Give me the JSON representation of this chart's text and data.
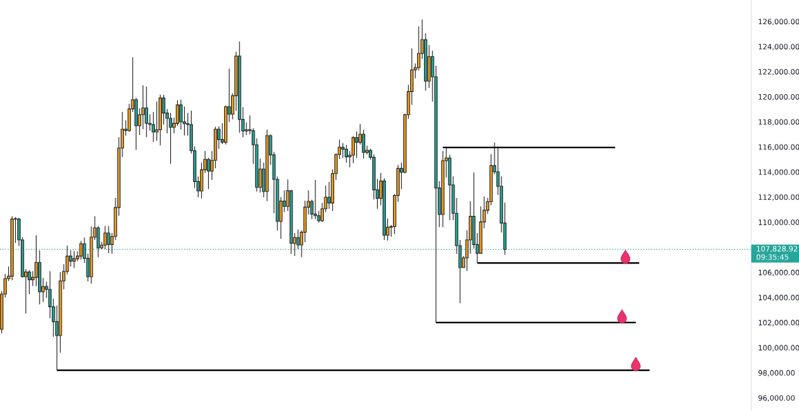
{
  "chart_data": {
    "type": "candlestick",
    "categories": [
      null,
      null,
      null,
      null,
      null,
      null,
      null,
      null,
      null,
      null,
      null,
      null,
      null,
      null,
      null,
      null,
      null,
      null,
      null,
      null,
      null,
      null,
      null,
      null,
      null,
      null,
      null,
      null,
      null,
      null,
      null,
      null,
      null,
      null,
      null,
      null,
      null,
      null,
      null,
      null,
      null,
      null,
      null,
      null,
      null,
      null,
      null,
      null,
      null,
      null,
      null,
      null,
      null,
      null,
      null,
      null,
      null,
      null,
      null,
      null,
      null,
      null,
      null,
      null,
      null,
      null,
      null,
      null,
      null,
      null,
      null,
      null,
      null,
      null,
      null,
      null,
      null,
      null,
      null,
      null,
      null,
      null,
      null,
      null,
      null,
      null,
      null,
      null,
      null,
      null,
      null,
      null,
      null,
      null,
      null,
      null,
      null,
      null,
      null,
      null,
      null,
      null,
      null,
      null,
      null,
      null,
      null,
      null,
      null,
      null,
      null,
      null,
      null,
      null,
      null,
      null,
      null,
      null,
      null,
      null,
      null,
      null,
      null,
      null,
      null,
      null,
      null,
      null,
      null,
      null,
      null,
      null,
      null,
      null,
      null,
      null,
      null,
      null,
      null,
      null,
      null,
      null,
      null,
      null,
      null,
      null,
      null,
      null,
      null,
      null,
      null,
      null,
      null,
      null,
      null,
      null,
      null,
      null,
      null,
      null,
      null,
      null,
      null,
      null,
      null,
      null,
      null,
      null,
      null,
      null,
      null,
      null,
      null,
      null,
      null,
      null,
      null,
      null,
      null,
      null,
      null,
      null,
      null,
      null,
      null,
      null,
      null,
      null,
      null,
      null,
      null,
      null,
      null,
      null,
      null,
      null,
      null,
      null,
      null,
      null,
      null,
      null,
      null,
      null,
      null,
      null,
      null,
      null,
      null,
      null,
      null,
      null,
      null,
      null,
      null,
      null,
      null,
      null
    ],
    "ohlc": [
      [
        101460,
        104500,
        101140,
        104270
      ],
      [
        104270,
        105870,
        104000,
        105500
      ],
      [
        105500,
        106460,
        105320,
        105700
      ],
      [
        105700,
        110470,
        105380,
        110250
      ],
      [
        110280,
        110400,
        108350,
        110250
      ],
      [
        110250,
        110340,
        108100,
        108590
      ],
      [
        108590,
        108800,
        105600,
        105650
      ],
      [
        105650,
        106260,
        102730,
        106030
      ],
      [
        106030,
        106180,
        104270,
        105410
      ],
      [
        105410,
        106100,
        104900,
        105600
      ],
      [
        105600,
        108960,
        104900,
        106790
      ],
      [
        106790,
        107760,
        103450,
        104450
      ],
      [
        104450,
        105550,
        103650,
        104880
      ],
      [
        104880,
        105250,
        103950,
        104640
      ],
      [
        104640,
        106100,
        102340,
        103260
      ],
      [
        103260,
        103900,
        100870,
        102070
      ],
      [
        102070,
        103350,
        98200,
        100960
      ],
      [
        100960,
        106020,
        99590,
        105320
      ],
      [
        105320,
        106660,
        104640,
        106080
      ],
      [
        106080,
        108130,
        105840,
        107300
      ],
      [
        107300,
        107760,
        106480,
        106900
      ],
      [
        106900,
        107700,
        106350,
        107090
      ],
      [
        107090,
        107680,
        106900,
        107300
      ],
      [
        107300,
        108500,
        107010,
        108280
      ],
      [
        108280,
        108780,
        106750,
        107120
      ],
      [
        107120,
        107500,
        105280,
        105650
      ],
      [
        105650,
        109660,
        105100,
        108810
      ],
      [
        108810,
        110470,
        108590,
        109550
      ],
      [
        109550,
        109700,
        107210,
        107950
      ],
      [
        107950,
        108430,
        107850,
        108170
      ],
      [
        108170,
        109700,
        107850,
        109140
      ],
      [
        109140,
        109690,
        107530,
        108220
      ],
      [
        108220,
        109140,
        107490,
        108860
      ],
      [
        108860,
        111940,
        108590,
        111170
      ],
      [
        111170,
        116770,
        110520,
        115910
      ],
      [
        115910,
        118790,
        115200,
        117410
      ],
      [
        117410,
        118110,
        116900,
        117300
      ],
      [
        117300,
        119440,
        117190,
        119030
      ],
      [
        119030,
        123150,
        118790,
        119770
      ],
      [
        119770,
        119900,
        115760,
        117690
      ],
      [
        117690,
        119070,
        116960,
        118570
      ],
      [
        118570,
        120910,
        117410,
        119110
      ],
      [
        119110,
        120820,
        116770,
        117880
      ],
      [
        117880,
        118600,
        117300,
        117780
      ],
      [
        117780,
        118790,
        116400,
        117190
      ],
      [
        117190,
        119620,
        116490,
        117370
      ],
      [
        117370,
        120170,
        116130,
        119900
      ],
      [
        119900,
        120150,
        117780,
        118700
      ],
      [
        118700,
        119030,
        117080,
        118280
      ],
      [
        118280,
        118700,
        114650,
        117560
      ],
      [
        117560,
        118340,
        117080,
        117870
      ],
      [
        117870,
        119710,
        117690,
        119350
      ],
      [
        119350,
        119770,
        117380,
        118000
      ],
      [
        118000,
        119220,
        116920,
        117850
      ],
      [
        117850,
        118700,
        116900,
        117780
      ],
      [
        117780,
        118890,
        115480,
        115700
      ],
      [
        115700,
        116050,
        112730,
        113240
      ],
      [
        113240,
        113650,
        111990,
        112490
      ],
      [
        112490,
        114750,
        111900,
        114180
      ],
      [
        114180,
        115670,
        113920,
        115010
      ],
      [
        115010,
        115120,
        112640,
        114070
      ],
      [
        114070,
        115670,
        113370,
        114930
      ],
      [
        114930,
        117600,
        114290,
        117410
      ],
      [
        117410,
        117650,
        115850,
        116590
      ],
      [
        116590,
        117880,
        116250,
        116370
      ],
      [
        116370,
        119300,
        116200,
        119200
      ],
      [
        119200,
        122230,
        117970,
        118610
      ],
      [
        118610,
        120270,
        118190,
        120080
      ],
      [
        120080,
        123570,
        118890,
        123240
      ],
      [
        123240,
        124400,
        117140,
        118190
      ],
      [
        118190,
        119160,
        116770,
        117270
      ],
      [
        117270,
        117950,
        116950,
        117370
      ],
      [
        117370,
        118520,
        117010,
        117300
      ],
      [
        117300,
        117500,
        114650,
        116170
      ],
      [
        116170,
        116680,
        112450,
        112780
      ],
      [
        112780,
        115060,
        112360,
        114240
      ],
      [
        114240,
        114750,
        111990,
        112450
      ],
      [
        112450,
        117380,
        111680,
        116900
      ],
      [
        116900,
        117000,
        114570,
        115360
      ],
      [
        115360,
        115600,
        110710,
        113410
      ],
      [
        113410,
        113650,
        109330,
        110060
      ],
      [
        110060,
        112000,
        108680,
        111680
      ],
      [
        111680,
        112540,
        110800,
        111260
      ],
      [
        111260,
        113410,
        110890,
        112510
      ],
      [
        112510,
        112560,
        107490,
        108310
      ],
      [
        108310,
        109140,
        107300,
        108780
      ],
      [
        108780,
        109420,
        107850,
        108190
      ],
      [
        108190,
        109360,
        107210,
        109200
      ],
      [
        109200,
        111720,
        108410,
        111200
      ],
      [
        111200,
        112540,
        110610,
        111660
      ],
      [
        111660,
        111800,
        110240,
        110650
      ],
      [
        110650,
        113370,
        110240,
        110520
      ],
      [
        110520,
        110900,
        109970,
        110120
      ],
      [
        110120,
        111530,
        110000,
        111070
      ],
      [
        111070,
        112910,
        110800,
        111990
      ],
      [
        111990,
        113220,
        111070,
        111530
      ],
      [
        111530,
        114200,
        110890,
        113880
      ],
      [
        113880,
        115500,
        113370,
        115400
      ],
      [
        115400,
        116590,
        115030,
        115980
      ],
      [
        115980,
        116310,
        115120,
        115820
      ],
      [
        115820,
        116150,
        114750,
        115210
      ],
      [
        115210,
        115670,
        114380,
        115340
      ],
      [
        115340,
        116870,
        114710,
        116740
      ],
      [
        116740,
        117230,
        115120,
        116370
      ],
      [
        116370,
        117820,
        116200,
        117010
      ],
      [
        117010,
        117360,
        115080,
        115570
      ],
      [
        115570,
        116100,
        115400,
        115730
      ],
      [
        115730,
        115850,
        115000,
        115170
      ],
      [
        115170,
        115400,
        111810,
        112580
      ],
      [
        112580,
        113460,
        111070,
        111900
      ],
      [
        111900,
        113920,
        111350,
        113280
      ],
      [
        113280,
        113500,
        108590,
        108960
      ],
      [
        108960,
        110300,
        108530,
        109600
      ],
      [
        109600,
        109780,
        108850,
        109650
      ],
      [
        109650,
        112250,
        109050,
        112130
      ],
      [
        112130,
        114570,
        111620,
        114290
      ],
      [
        114290,
        114750,
        112640,
        113980
      ],
      [
        113980,
        118650,
        113900,
        118570
      ],
      [
        118570,
        120960,
        118240,
        120410
      ],
      [
        120410,
        123850,
        119350,
        122140
      ],
      [
        122140,
        122650,
        121460,
        122320
      ],
      [
        122320,
        125600,
        122100,
        123450
      ],
      [
        123450,
        126150,
        123020,
        124550
      ],
      [
        124550,
        125050,
        120490,
        121240
      ],
      [
        121240,
        124120,
        120700,
        123200
      ],
      [
        123200,
        123670,
        119620,
        121590
      ],
      [
        121590,
        122470,
        102000,
        112730
      ],
      [
        112730,
        113280,
        109600,
        110610
      ],
      [
        110610,
        115670,
        109600,
        114900
      ],
      [
        114900,
        115950,
        113550,
        115120
      ],
      [
        115120,
        115390,
        110160,
        112970
      ],
      [
        112970,
        113650,
        110160,
        110710
      ],
      [
        110710,
        111940,
        107490,
        108130
      ],
      [
        108130,
        108590,
        103540,
        106380
      ],
      [
        106380,
        107300,
        106350,
        107150
      ],
      [
        107150,
        109360,
        106110,
        108590
      ],
      [
        108590,
        111680,
        107490,
        110470
      ],
      [
        110470,
        113960,
        107890,
        108220
      ],
      [
        108220,
        109140,
        106750,
        107520
      ],
      [
        107520,
        111260,
        107490,
        110030
      ],
      [
        110030,
        112050,
        109510,
        110950
      ],
      [
        110950,
        111940,
        110650,
        111630
      ],
      [
        111630,
        115430,
        111350,
        114510
      ],
      [
        114510,
        116350,
        113830,
        114020
      ],
      [
        114020,
        116040,
        112170,
        112860
      ],
      [
        112860,
        113650,
        109180,
        109930
      ],
      [
        109930,
        111570,
        107400,
        107828.92
      ],
      null,
      null,
      null,
      null,
      null,
      null,
      null,
      null,
      null,
      null,
      null,
      null,
      null,
      null,
      null,
      null,
      null,
      null,
      null,
      null,
      null,
      null,
      null,
      null,
      null,
      null,
      null,
      null,
      null,
      null,
      null,
      null,
      null,
      null,
      null,
      null,
      null,
      null,
      null,
      null,
      null,
      null,
      null,
      null,
      null,
      null,
      null,
      null,
      null,
      null,
      null,
      null,
      null,
      null,
      null,
      null,
      null,
      null,
      null,
      null,
      null,
      null,
      null,
      null,
      null,
      null,
      null,
      null,
      null,
      null,
      null
    ],
    "colors": [
      "#f5a11c",
      "#f5a11c",
      "#f5a11c",
      "#f5a11c",
      "#26a69a",
      "#26a69a",
      "#26a69a",
      "#f5a11c",
      "#26a69a",
      "#f5a11c",
      "#f5a11c",
      "#26a69a",
      "#f5a11c",
      "#26a69a",
      "#26a69a",
      "#26a69a",
      "#26a69a",
      "#f5a11c",
      "#f5a11c",
      "#f5a11c",
      "#26a69a",
      "#f5a11c",
      "#f5a11c",
      "#f5a11c",
      "#26a69a",
      "#26a69a",
      "#f5a11c",
      "#f5a11c",
      "#26a69a",
      "#f5a11c",
      "#f5a11c",
      "#26a69a",
      "#f5a11c",
      "#f5a11c",
      "#f5a11c",
      "#f5a11c",
      "#26a69a",
      "#f5a11c",
      "#f5a11c",
      "#26a69a",
      "#f5a11c",
      "#f5a11c",
      "#26a69a",
      "#26a69a",
      "#26a69a",
      "#f5a11c",
      "#f5a11c",
      "#26a69a",
      "#26a69a",
      "#26a69a",
      "#f5a11c",
      "#f5a11c",
      "#26a69a",
      "#26a69a",
      "#26a69a",
      "#26a69a",
      "#26a69a",
      "#26a69a",
      "#f5a11c",
      "#f5a11c",
      "#26a69a",
      "#f5a11c",
      "#f5a11c",
      "#26a69a",
      "#26a69a",
      "#f5a11c",
      "#26a69a",
      "#f5a11c",
      "#f5a11c",
      "#26a69a",
      "#26a69a",
      "#f5a11c",
      "#26a69a",
      "#26a69a",
      "#26a69a",
      "#f5a11c",
      "#26a69a",
      "#f5a11c",
      "#26a69a",
      "#26a69a",
      "#26a69a",
      "#f5a11c",
      "#26a69a",
      "#f5a11c",
      "#26a69a",
      "#f5a11c",
      "#26a69a",
      "#f5a11c",
      "#f5a11c",
      "#f5a11c",
      "#26a69a",
      "#26a69a",
      "#26a69a",
      "#f5a11c",
      "#f5a11c",
      "#26a69a",
      "#f5a11c",
      "#f5a11c",
      "#f5a11c",
      "#26a69a",
      "#26a69a",
      "#f5a11c",
      "#f5a11c",
      "#26a69a",
      "#f5a11c",
      "#26a69a",
      "#f5a11c",
      "#26a69a",
      "#26a69a",
      "#26a69a",
      "#f5a11c",
      "#26a69a",
      "#f5a11c",
      "#f5a11c",
      "#f5a11c",
      "#f5a11c",
      "#26a69a",
      "#f5a11c",
      "#f5a11c",
      "#f5a11c",
      "#f5a11c",
      "#f5a11c",
      "#f5a11c",
      "#26a69a",
      "#f5a11c",
      "#26a69a",
      "#26a69a",
      "#26a69a",
      "#f5a11c",
      "#f5a11c",
      "#26a69a",
      "#26a69a",
      "#26a69a",
      "#26a69a",
      "#f5a11c",
      "#f5a11c",
      "#f5a11c",
      "#26a69a",
      "#26a69a",
      "#f5a11c",
      "#f5a11c",
      "#f5a11c",
      "#f5a11c",
      "#26a69a",
      "#26a69a",
      "#26a69a",
      "#26a69a",
      null,
      null,
      null,
      null,
      null,
      null,
      null,
      null,
      null,
      null,
      null,
      null,
      null,
      null,
      null,
      null,
      null,
      null,
      null,
      null,
      null,
      null,
      null,
      null,
      null,
      null,
      null,
      null,
      null,
      null,
      null,
      null,
      null,
      null,
      null,
      null,
      null,
      null,
      null,
      null,
      null,
      null,
      null,
      null,
      null,
      null,
      null,
      null,
      null,
      null,
      null,
      null,
      null,
      null,
      null,
      null,
      null,
      null,
      null,
      null,
      null,
      null,
      null,
      null,
      null,
      null,
      null,
      null,
      null,
      null,
      null
    ],
    "series": [
      {
        "type": "line",
        "color": "#000000",
        "values": [
          null,
          null,
          null,
          null,
          null,
          null,
          null,
          null,
          null,
          null,
          null,
          null,
          null,
          null,
          null,
          null,
          null,
          null,
          null,
          null,
          null,
          null,
          null,
          null,
          null,
          null,
          null,
          null,
          null,
          null,
          null,
          null,
          null,
          null,
          null,
          null,
          null,
          null,
          null,
          null,
          null,
          null,
          null,
          null,
          null,
          null,
          null,
          null,
          null,
          null,
          null,
          null,
          null,
          null,
          null,
          null,
          null,
          null,
          null,
          null,
          null,
          null,
          null,
          null,
          null,
          null,
          null,
          null,
          null,
          null,
          null,
          null,
          null,
          null,
          null,
          null,
          null,
          null,
          null,
          null,
          null,
          null,
          null,
          null,
          null,
          null,
          null,
          null,
          null,
          null,
          null,
          null,
          null,
          null,
          null,
          null,
          null,
          null,
          null,
          null,
          null,
          null,
          null,
          null,
          null,
          null,
          null,
          null,
          null,
          null,
          null,
          null,
          null,
          null,
          null,
          null,
          null,
          null,
          null,
          null,
          null,
          null,
          null,
          null,
          null,
          null,
          null,
          null,
          115950,
          115950,
          115950,
          115950,
          115950,
          115950,
          115950,
          115950,
          115950,
          115950,
          115950,
          115950,
          115950,
          115950,
          115950,
          115950,
          115950,
          115950,
          115950,
          115950,
          115950,
          115950,
          115950,
          115950,
          115950,
          115950,
          115950,
          115950,
          115950,
          115950,
          115950,
          115950,
          115950,
          115950,
          115950,
          115950,
          115950,
          115950,
          115950,
          115950,
          115950,
          115950,
          115950,
          115950,
          115950,
          115950,
          115950,
          115950,
          115950,
          115950,
          115950,
          null,
          null,
          null,
          null,
          null,
          null,
          null,
          null,
          null,
          null,
          null,
          null,
          null,
          null,
          null,
          null,
          null,
          null,
          null,
          null,
          null,
          null,
          null,
          null,
          null,
          null,
          null,
          null,
          null,
          null,
          null,
          null,
          null,
          null,
          null,
          null,
          null,
          null,
          null
        ]
      },
      {
        "type": "line",
        "color": "#000000",
        "values": [
          null,
          null,
          null,
          null,
          null,
          null,
          null,
          null,
          null,
          null,
          null,
          null,
          null,
          null,
          null,
          null,
          null,
          null,
          null,
          null,
          null,
          null,
          null,
          null,
          null,
          null,
          null,
          null,
          null,
          null,
          null,
          null,
          null,
          null,
          null,
          null,
          null,
          null,
          null,
          null,
          null,
          null,
          null,
          null,
          null,
          null,
          null,
          null,
          null,
          null,
          null,
          null,
          null,
          null,
          null,
          null,
          null,
          null,
          null,
          null,
          null,
          null,
          null,
          null,
          null,
          null,
          null,
          null,
          null,
          null,
          null,
          null,
          null,
          null,
          null,
          null,
          null,
          null,
          null,
          null,
          null,
          null,
          null,
          null,
          null,
          null,
          null,
          null,
          null,
          null,
          null,
          null,
          null,
          null,
          null,
          null,
          null,
          null,
          null,
          null,
          null,
          null,
          null,
          null,
          null,
          null,
          null,
          null,
          null,
          null,
          null,
          null,
          null,
          null,
          null,
          null,
          null,
          null,
          null,
          null,
          null,
          null,
          null,
          null,
          null,
          null,
          null,
          null,
          null,
          null,
          null,
          null,
          null,
          null,
          null,
          null,
          null,
          null,
          106750,
          106750,
          106750,
          106750,
          106750,
          106750,
          106750,
          106750,
          106750,
          106750,
          106750,
          106750,
          106750,
          106750,
          106750,
          106750,
          106750,
          106750,
          106750,
          106750,
          106750,
          106750,
          106750,
          106750,
          106750,
          106750,
          106750,
          106750,
          106750,
          106750,
          106750,
          106750,
          106750,
          106750,
          106750,
          106750,
          106750,
          106750,
          106750,
          106750,
          106750,
          106750,
          106750,
          106750,
          106750,
          106750,
          106750,
          106750,
          null,
          null,
          null,
          null,
          null,
          null,
          null,
          null,
          null,
          null,
          null,
          null,
          null,
          null,
          null,
          null,
          null,
          null,
          null,
          null,
          null,
          null,
          null,
          null,
          null,
          null,
          null,
          null,
          null,
          null,
          null,
          null
        ]
      },
      {
        "type": "line",
        "color": "#000000",
        "values": [
          null,
          null,
          null,
          null,
          null,
          null,
          null,
          null,
          null,
          null,
          null,
          null,
          null,
          null,
          null,
          null,
          null,
          null,
          null,
          null,
          null,
          null,
          null,
          null,
          null,
          null,
          null,
          null,
          null,
          null,
          null,
          null,
          null,
          null,
          null,
          null,
          null,
          null,
          null,
          null,
          null,
          null,
          null,
          null,
          null,
          null,
          null,
          null,
          null,
          null,
          null,
          null,
          null,
          null,
          null,
          null,
          null,
          null,
          null,
          null,
          null,
          null,
          null,
          null,
          null,
          null,
          null,
          null,
          null,
          null,
          null,
          null,
          null,
          null,
          null,
          null,
          null,
          null,
          null,
          null,
          null,
          null,
          null,
          null,
          null,
          null,
          null,
          null,
          null,
          null,
          null,
          null,
          null,
          null,
          null,
          null,
          null,
          null,
          null,
          null,
          null,
          null,
          null,
          null,
          null,
          null,
          null,
          null,
          null,
          null,
          null,
          null,
          null,
          null,
          null,
          null,
          null,
          null,
          null,
          null,
          null,
          null,
          null,
          null,
          null,
          null,
          102000,
          102000,
          102000,
          102000,
          102000,
          102000,
          102000,
          102000,
          102000,
          102000,
          102000,
          102000,
          102000,
          102000,
          102000,
          102000,
          102000,
          102000,
          102000,
          102000,
          102000,
          102000,
          102000,
          102000,
          102000,
          102000,
          102000,
          102000,
          102000,
          102000,
          102000,
          102000,
          102000,
          102000,
          102000,
          102000,
          102000,
          102000,
          102000,
          102000,
          102000,
          102000,
          102000,
          102000,
          102000,
          102000,
          102000,
          102000,
          102000,
          102000,
          102000,
          102000,
          102000,
          102000,
          102000,
          102000,
          102000,
          102000,
          102000,
          null,
          null,
          null,
          null,
          null,
          null,
          null,
          null,
          null,
          null,
          null,
          null,
          null,
          null,
          null,
          null,
          null,
          null,
          null,
          null,
          null,
          null,
          null,
          null,
          null,
          null,
          null,
          null,
          null,
          null,
          null,
          null,
          null
        ]
      },
      {
        "type": "line",
        "color": "#000000",
        "values": [
          null,
          null,
          null,
          null,
          null,
          null,
          null,
          null,
          null,
          null,
          null,
          null,
          null,
          null,
          null,
          null,
          98200,
          98200,
          98200,
          98200,
          98200,
          98200,
          98200,
          98200,
          98200,
          98200,
          98200,
          98200,
          98200,
          98200,
          98200,
          98200,
          98200,
          98200,
          98200,
          98200,
          98200,
          98200,
          98200,
          98200,
          98200,
          98200,
          98200,
          98200,
          98200,
          98200,
          98200,
          98200,
          98200,
          98200,
          98200,
          98200,
          98200,
          98200,
          98200,
          98200,
          98200,
          98200,
          98200,
          98200,
          98200,
          98200,
          98200,
          98200,
          98200,
          98200,
          98200,
          98200,
          98200,
          98200,
          98200,
          98200,
          98200,
          98200,
          98200,
          98200,
          98200,
          98200,
          98200,
          98200,
          98200,
          98200,
          98200,
          98200,
          98200,
          98200,
          98200,
          98200,
          98200,
          98200,
          98200,
          98200,
          98200,
          98200,
          98200,
          98200,
          98200,
          98200,
          98200,
          98200,
          98200,
          98200,
          98200,
          98200,
          98200,
          98200,
          98200,
          98200,
          98200,
          98200,
          98200,
          98200,
          98200,
          98200,
          98200,
          98200,
          98200,
          98200,
          98200,
          98200,
          98200,
          98200,
          98200,
          98200,
          98200,
          98200,
          98200,
          98200,
          98200,
          98200,
          98200,
          98200,
          98200,
          98200,
          98200,
          98200,
          98200,
          98200,
          98200,
          98200,
          98200,
          98200,
          98200,
          98200,
          98200,
          98200,
          98200,
          98200,
          98200,
          98200,
          98200,
          98200,
          98200,
          98200,
          98200,
          98200,
          98200,
          98200,
          98200,
          98200,
          98200,
          98200,
          98200,
          98200,
          98200,
          98200,
          98200,
          98200,
          98200,
          98200,
          98200,
          98200,
          98200,
          98200,
          98200,
          98200,
          98200,
          98200,
          98200,
          98200,
          98200,
          98200,
          98200,
          98200,
          98200,
          98200,
          98200,
          98200,
          98200,
          null,
          null,
          null,
          null,
          null,
          null,
          null,
          null,
          null,
          null,
          null,
          null,
          null,
          null,
          null,
          null,
          null,
          null,
          null,
          null,
          null,
          null,
          null,
          null,
          null,
          null,
          null,
          null,
          null
        ]
      }
    ],
    "ylim": [
      94950,
      127710
    ],
    "yticks": [
      {
        "value": 96000,
        "label": "96,000.00"
      },
      {
        "value": 98000,
        "label": "98,000.00"
      },
      {
        "value": 100000,
        "label": "100,000.00"
      },
      {
        "value": 102000,
        "label": "102,000.00"
      },
      {
        "value": 104000,
        "label": "104,000.00"
      },
      {
        "value": 106000,
        "label": "106,000.00"
      },
      {
        "value": 110000,
        "label": "110,000.00"
      },
      {
        "value": 112000,
        "label": "112,000.00"
      },
      {
        "value": 114000,
        "label": "114,000.00"
      },
      {
        "value": 116000,
        "label": "116,000.00"
      },
      {
        "value": 118000,
        "label": "118,000.00"
      },
      {
        "value": 120000,
        "label": "120,000.00"
      },
      {
        "value": 122000,
        "label": "122,000.00"
      },
      {
        "value": 124000,
        "label": "124,000.00"
      },
      {
        "value": 126000,
        "label": "126,000.00"
      }
    ],
    "ref_lines": [
      {
        "axis": "y",
        "value": 107828.92,
        "label": "107,828.92",
        "color": "#26a69a",
        "line_style": "dotted"
      }
    ],
    "annotations": [
      "09:35:45"
    ],
    "tick_labels": "y",
    "grid": false
  }
}
